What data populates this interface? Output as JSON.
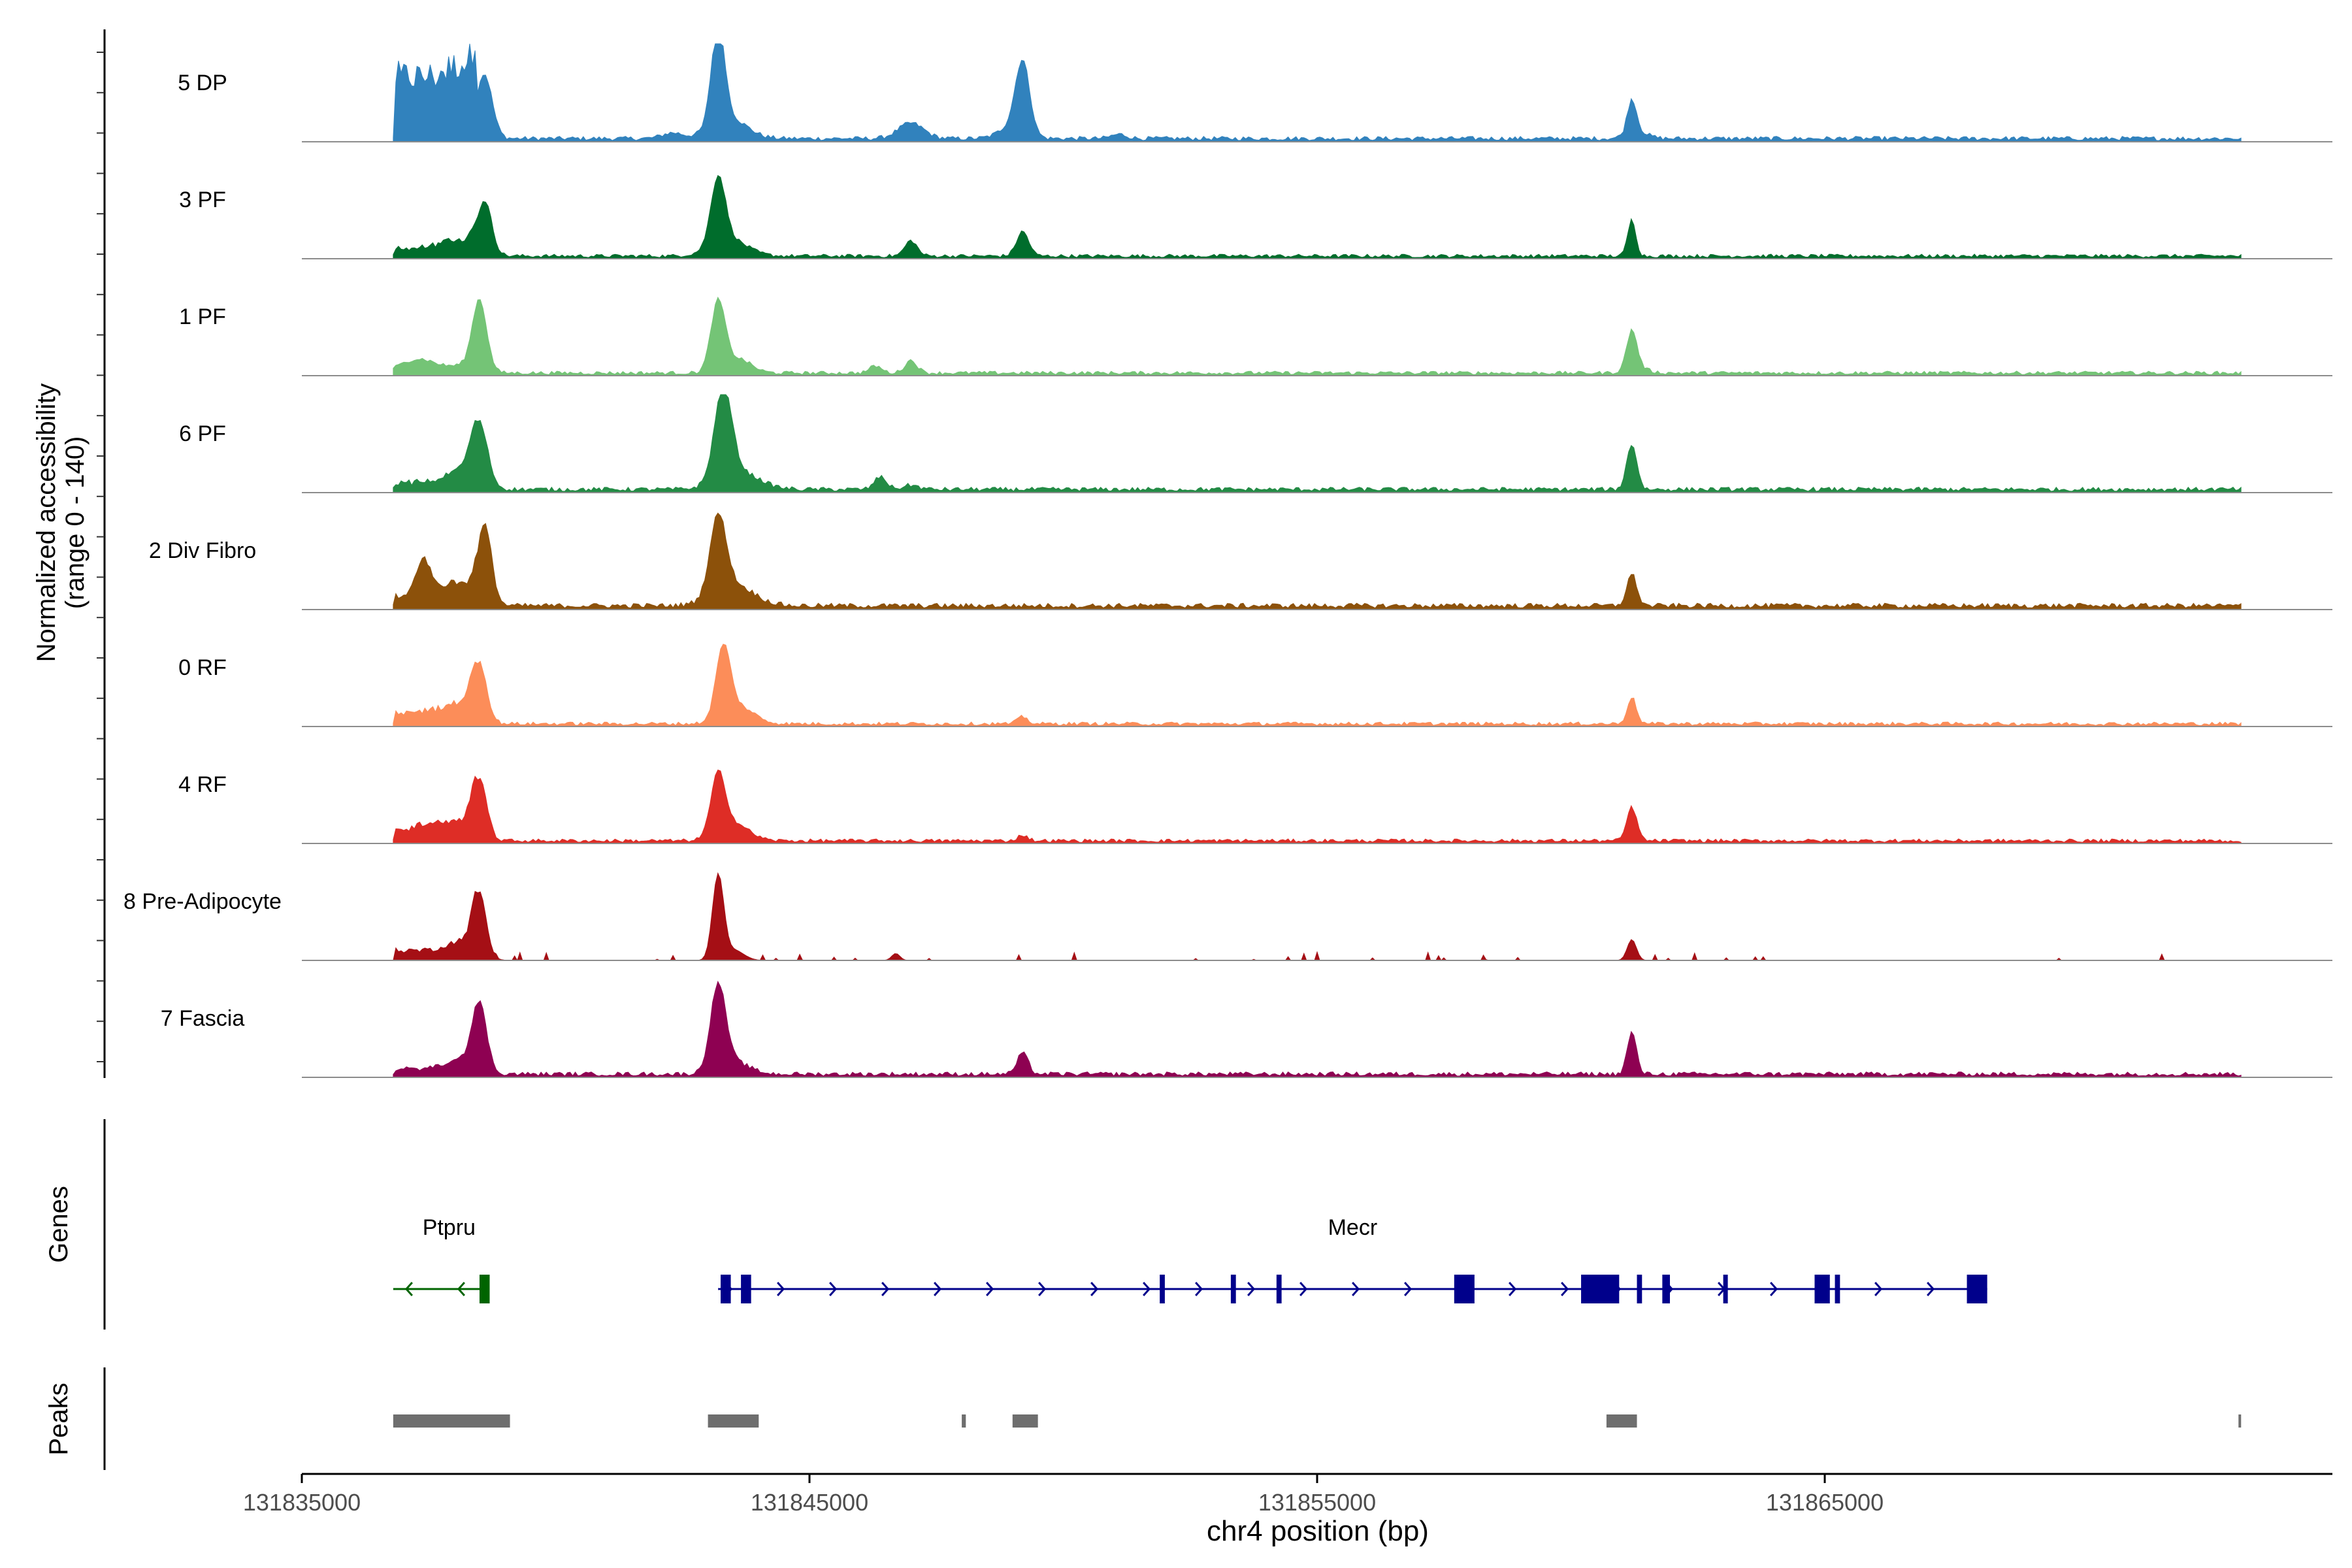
{
  "chart_data": {
    "type": "area",
    "title": "",
    "xlabel": "chr4 position (bp)",
    "ylabel_line1": "Normalized accessibility",
    "ylabel_line2": "(range 0 - 140)",
    "yrange": [
      0,
      140
    ],
    "xlim": [
      131835000,
      131875000
    ],
    "data_start": 131836800,
    "data_end": 131873200,
    "x_ticks": [
      {
        "value": 131835000,
        "label": "131835000"
      },
      {
        "value": 131845000,
        "label": "131845000"
      },
      {
        "value": 131855000,
        "label": "131855000"
      },
      {
        "value": 131865000,
        "label": "131865000"
      }
    ],
    "series": [
      {
        "name": "5 DP",
        "color": "#3182bd",
        "baseline": 6,
        "peaks": [
          [
            131836820,
            110,
            22,
            "plateau"
          ],
          [
            131838600,
            85,
            150
          ],
          [
            131838200,
            18,
            300
          ],
          [
            131842300,
            8,
            200
          ],
          [
            131843200,
            140,
            130
          ],
          [
            131843400,
            30,
            350
          ],
          [
            131847000,
            22,
            250
          ],
          [
            131849200,
            100,
            140
          ],
          [
            131849000,
            18,
            250
          ],
          [
            131851100,
            6,
            150
          ],
          [
            131861200,
            48,
            90
          ],
          [
            131861300,
            10,
            200
          ]
        ]
      },
      {
        "name": "3 PF",
        "color": "#006d2c",
        "baseline": 5,
        "peaks": [
          [
            131836820,
            14,
            22,
            "plateau"
          ],
          [
            131838600,
            75,
            140
          ],
          [
            131838100,
            14,
            350
          ],
          [
            131843200,
            95,
            140
          ],
          [
            131843400,
            25,
            350
          ],
          [
            131847000,
            22,
            120
          ],
          [
            131849200,
            35,
            120
          ],
          [
            131861200,
            52,
            80
          ]
        ]
      },
      {
        "name": "1 PF",
        "color": "#74c476",
        "baseline": 5,
        "peaks": [
          [
            131837300,
            20,
            350
          ],
          [
            131838500,
            100,
            140
          ],
          [
            131838200,
            10,
            300
          ],
          [
            131843200,
            100,
            140
          ],
          [
            131843600,
            20,
            250
          ],
          [
            131846300,
            10,
            120
          ],
          [
            131847000,
            18,
            120
          ],
          [
            131861200,
            55,
            100
          ],
          [
            131861300,
            8,
            200
          ]
        ]
      },
      {
        "name": "6 PF",
        "color": "#238b45",
        "baseline": 6,
        "peaks": [
          [
            131836820,
            12,
            22,
            "plateau"
          ],
          [
            131838500,
            85,
            160
          ],
          [
            131838200,
            20,
            300
          ],
          [
            131843300,
            130,
            170
          ],
          [
            131843600,
            25,
            400
          ],
          [
            131846400,
            18,
            120
          ],
          [
            131847000,
            6,
            150
          ],
          [
            131861200,
            65,
            100
          ]
        ]
      },
      {
        "name": "2 Div Fibro",
        "color": "#8c510a",
        "baseline": 7,
        "peaks": [
          [
            131836820,
            15,
            22,
            "plateau"
          ],
          [
            131837400,
            55,
            150
          ],
          [
            131837900,
            12,
            200
          ],
          [
            131838600,
            110,
            140
          ],
          [
            131838200,
            15,
            300
          ],
          [
            131843200,
            110,
            160
          ],
          [
            131843500,
            30,
            400
          ],
          [
            131861200,
            45,
            100
          ]
        ]
      },
      {
        "name": "0 RF",
        "color": "#fc8d59",
        "baseline": 5,
        "peaks": [
          [
            131836820,
            22,
            22,
            "plateau"
          ],
          [
            131838500,
            80,
            140
          ],
          [
            131838200,
            14,
            300
          ],
          [
            131843300,
            100,
            140
          ],
          [
            131843600,
            25,
            300
          ],
          [
            131849200,
            10,
            100
          ],
          [
            131861200,
            38,
            90
          ]
        ]
      },
      {
        "name": "4 RF",
        "color": "#de2d26",
        "baseline": 5,
        "peaks": [
          [
            131836820,
            20,
            22,
            "plateau"
          ],
          [
            131837600,
            10,
            300
          ],
          [
            131838500,
            85,
            140
          ],
          [
            131838200,
            10,
            300
          ],
          [
            131843200,
            85,
            140
          ],
          [
            131843500,
            25,
            300
          ],
          [
            131849200,
            8,
            100
          ],
          [
            131861200,
            48,
            100
          ]
        ]
      },
      {
        "name": "8 Pre-Adipocyte",
        "color": "#a50f15",
        "baseline": 0,
        "sparse": true,
        "peaks": [
          [
            131836820,
            18,
            22,
            "plateau"
          ],
          [
            131838500,
            90,
            130
          ],
          [
            131838200,
            15,
            300
          ],
          [
            131843200,
            120,
            110
          ],
          [
            131843500,
            15,
            200
          ],
          [
            131846700,
            10,
            80
          ],
          [
            131861200,
            30,
            90
          ]
        ]
      },
      {
        "name": "7 Fascia",
        "color": "#8e0152",
        "baseline": 6,
        "peaks": [
          [
            131836820,
            10,
            22,
            "plateau"
          ],
          [
            131838500,
            95,
            140
          ],
          [
            131838200,
            14,
            300
          ],
          [
            131843200,
            120,
            150
          ],
          [
            131843500,
            18,
            300
          ],
          [
            131849200,
            30,
            110
          ],
          [
            131861200,
            60,
            90
          ]
        ]
      }
    ],
    "panels": {
      "genes_label": "Genes",
      "peaks_label": "Peaks"
    },
    "genes": [
      {
        "name": "Ptpru",
        "color": "#006400",
        "strand": "-",
        "start": 131836800,
        "end": 131838700,
        "exons": [
          [
            131838500,
            131838700
          ]
        ]
      },
      {
        "name": "Mecr",
        "color": "#00008b",
        "strand": "+",
        "start": 131843200,
        "end": 131868200,
        "exons": [
          [
            131843250,
            131843450
          ],
          [
            131843650,
            131843850
          ],
          [
            131851900,
            131852000
          ],
          [
            131853300,
            131853400
          ],
          [
            131854200,
            131854300
          ],
          [
            131857700,
            131858100
          ],
          [
            131860200,
            131860950
          ],
          [
            131861300,
            131861400
          ],
          [
            131861800,
            131861950
          ],
          [
            131863000,
            131863080
          ],
          [
            131864800,
            131865100
          ],
          [
            131865200,
            131865300
          ],
          [
            131867800,
            131868200
          ]
        ]
      }
    ],
    "peaks": [
      {
        "start": 131836800,
        "end": 131839100
      },
      {
        "start": 131843000,
        "end": 131844000
      },
      {
        "start": 131848000,
        "end": 131848080
      },
      {
        "start": 131849000,
        "end": 131849500
      },
      {
        "start": 131860700,
        "end": 131861300
      },
      {
        "start": 131873150,
        "end": 131873200
      }
    ]
  }
}
